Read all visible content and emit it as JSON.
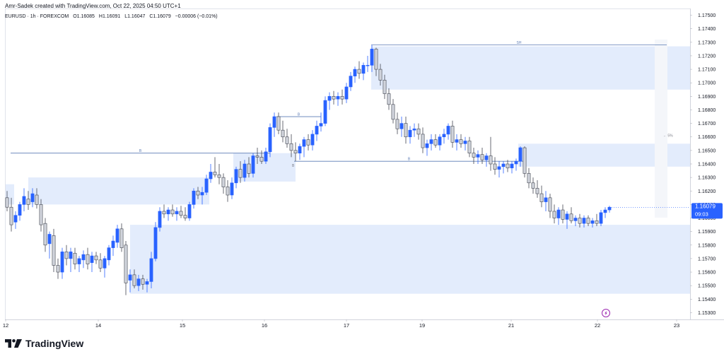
{
  "header": {
    "author_line": "Amr-Sadek created with TradingView.com, Oct 22, 2025 04:50 UTC+1",
    "symbol": "EURUSD · 1h · FOREXCOM",
    "open": "O1.16085",
    "high": "H1.16091",
    "low": "L1.16047",
    "close": "C1.16079",
    "change": "−0.00006 (−0.01%)"
  },
  "brand": {
    "name": "TradingView",
    "logo_icon": "tradingview-logo-icon"
  },
  "price_label": {
    "price": "1.16079",
    "countdown": "09:03",
    "color": "#2962ff"
  },
  "colors": {
    "up_body": "#2962ff",
    "down_body": "#d1d4dc",
    "down_border": "#434651",
    "zone_fill": "#e3ecfc",
    "level_line": "#5b7bb5",
    "lightning_icon": "#9c27b0"
  },
  "chart_data": {
    "type": "candlestick",
    "symbol": "EURUSD",
    "timeframe": "1h",
    "y_range": [
      1.1525,
      1.1755
    ],
    "y_ticks": [
      "1.17500",
      "1.17400",
      "1.17300",
      "1.17200",
      "1.17100",
      "1.17000",
      "1.16900",
      "1.16800",
      "1.16700",
      "1.16600",
      "1.16500",
      "1.16400",
      "1.16300",
      "1.16200",
      "1.16100",
      "1.16000",
      "1.15900",
      "1.15800",
      "1.15700",
      "1.15600",
      "1.15500",
      "1.15400",
      "1.15300"
    ],
    "x_ticks": [
      {
        "label": "12",
        "x": 0
      },
      {
        "label": "14",
        "x": 131
      },
      {
        "label": "15",
        "x": 250
      },
      {
        "label": "16",
        "x": 366
      },
      {
        "label": "17",
        "x": 482
      },
      {
        "label": "19",
        "x": 589
      },
      {
        "label": "21",
        "x": 715
      },
      {
        "label": "22",
        "x": 837
      },
      {
        "label": "23",
        "x": 949
      }
    ],
    "candles": [
      {
        "x": 2,
        "o": 1.1615,
        "h": 1.162,
        "l": 1.1605,
        "c": 1.1608
      },
      {
        "x": 8,
        "o": 1.1608,
        "h": 1.1615,
        "l": 1.159,
        "c": 1.1595
      },
      {
        "x": 14,
        "o": 1.1597,
        "h": 1.1605,
        "l": 1.1592,
        "c": 1.1602
      },
      {
        "x": 20,
        "o": 1.1602,
        "h": 1.1612,
        "l": 1.1598,
        "c": 1.161
      },
      {
        "x": 26,
        "o": 1.161,
        "h": 1.1622,
        "l": 1.1605,
        "c": 1.1616
      },
      {
        "x": 32,
        "o": 1.1614,
        "h": 1.162,
        "l": 1.1606,
        "c": 1.161
      },
      {
        "x": 38,
        "o": 1.1612,
        "h": 1.1622,
        "l": 1.1608,
        "c": 1.1618
      },
      {
        "x": 44,
        "o": 1.1617,
        "h": 1.1622,
        "l": 1.1607,
        "c": 1.161
      },
      {
        "x": 50,
        "o": 1.161,
        "h": 1.1614,
        "l": 1.159,
        "c": 1.1595
      },
      {
        "x": 56,
        "o": 1.1596,
        "h": 1.16,
        "l": 1.1575,
        "c": 1.158
      },
      {
        "x": 62,
        "o": 1.1581,
        "h": 1.159,
        "l": 1.157,
        "c": 1.1588
      },
      {
        "x": 68,
        "o": 1.1587,
        "h": 1.1592,
        "l": 1.156,
        "c": 1.1565
      },
      {
        "x": 74,
        "o": 1.1565,
        "h": 1.157,
        "l": 1.1555,
        "c": 1.156
      },
      {
        "x": 80,
        "o": 1.156,
        "h": 1.1578,
        "l": 1.1555,
        "c": 1.1575
      },
      {
        "x": 86,
        "o": 1.1575,
        "h": 1.158,
        "l": 1.1565,
        "c": 1.157
      },
      {
        "x": 92,
        "o": 1.157,
        "h": 1.1578,
        "l": 1.156,
        "c": 1.1575
      },
      {
        "x": 98,
        "o": 1.1574,
        "h": 1.1578,
        "l": 1.1562,
        "c": 1.1566
      },
      {
        "x": 104,
        "o": 1.1566,
        "h": 1.1572,
        "l": 1.156,
        "c": 1.157
      },
      {
        "x": 110,
        "o": 1.1569,
        "h": 1.1576,
        "l": 1.1563,
        "c": 1.1573
      },
      {
        "x": 116,
        "o": 1.1573,
        "h": 1.1578,
        "l": 1.1562,
        "c": 1.1566
      },
      {
        "x": 122,
        "o": 1.1567,
        "h": 1.1575,
        "l": 1.156,
        "c": 1.1572
      },
      {
        "x": 128,
        "o": 1.1572,
        "h": 1.1575,
        "l": 1.1566,
        "c": 1.1569
      },
      {
        "x": 134,
        "o": 1.1569,
        "h": 1.1574,
        "l": 1.156,
        "c": 1.1563
      },
      {
        "x": 140,
        "o": 1.1563,
        "h": 1.1572,
        "l": 1.1556,
        "c": 1.157
      },
      {
        "x": 146,
        "o": 1.1569,
        "h": 1.158,
        "l": 1.1565,
        "c": 1.1578
      },
      {
        "x": 152,
        "o": 1.1578,
        "h": 1.1587,
        "l": 1.1572,
        "c": 1.1583
      },
      {
        "x": 158,
        "o": 1.1582,
        "h": 1.1595,
        "l": 1.1578,
        "c": 1.1592
      },
      {
        "x": 164,
        "o": 1.1592,
        "h": 1.1596,
        "l": 1.1575,
        "c": 1.1578
      },
      {
        "x": 170,
        "o": 1.158,
        "h": 1.1583,
        "l": 1.1543,
        "c": 1.1552
      },
      {
        "x": 176,
        "o": 1.1554,
        "h": 1.1562,
        "l": 1.1545,
        "c": 1.1558
      },
      {
        "x": 182,
        "o": 1.1558,
        "h": 1.1562,
        "l": 1.1548,
        "c": 1.155
      },
      {
        "x": 188,
        "o": 1.155,
        "h": 1.1558,
        "l": 1.1546,
        "c": 1.1555
      },
      {
        "x": 194,
        "o": 1.1555,
        "h": 1.1558,
        "l": 1.1547,
        "c": 1.1551
      },
      {
        "x": 200,
        "o": 1.1551,
        "h": 1.1555,
        "l": 1.1545,
        "c": 1.1553
      },
      {
        "x": 206,
        "o": 1.1553,
        "h": 1.1575,
        "l": 1.1548,
        "c": 1.157
      },
      {
        "x": 212,
        "o": 1.157,
        "h": 1.1597,
        "l": 1.1568,
        "c": 1.1593
      },
      {
        "x": 218,
        "o": 1.1593,
        "h": 1.1608,
        "l": 1.159,
        "c": 1.1605
      },
      {
        "x": 224,
        "o": 1.1605,
        "h": 1.161,
        "l": 1.16,
        "c": 1.1603
      },
      {
        "x": 230,
        "o": 1.1603,
        "h": 1.1608,
        "l": 1.1598,
        "c": 1.1606
      },
      {
        "x": 236,
        "o": 1.1606,
        "h": 1.161,
        "l": 1.1601,
        "c": 1.1603
      },
      {
        "x": 242,
        "o": 1.1603,
        "h": 1.1608,
        "l": 1.1598,
        "c": 1.1605
      },
      {
        "x": 248,
        "o": 1.1605,
        "h": 1.1609,
        "l": 1.16,
        "c": 1.1602
      },
      {
        "x": 254,
        "o": 1.1602,
        "h": 1.1608,
        "l": 1.1598,
        "c": 1.16
      },
      {
        "x": 260,
        "o": 1.16,
        "h": 1.1612,
        "l": 1.1598,
        "c": 1.161
      },
      {
        "x": 266,
        "o": 1.161,
        "h": 1.1622,
        "l": 1.1607,
        "c": 1.162
      },
      {
        "x": 272,
        "o": 1.162,
        "h": 1.1623,
        "l": 1.1614,
        "c": 1.1617
      },
      {
        "x": 278,
        "o": 1.1617,
        "h": 1.1623,
        "l": 1.161,
        "c": 1.1619
      },
      {
        "x": 284,
        "o": 1.1619,
        "h": 1.1632,
        "l": 1.1617,
        "c": 1.1629
      },
      {
        "x": 290,
        "o": 1.1629,
        "h": 1.164,
        "l": 1.1626,
        "c": 1.1634
      },
      {
        "x": 296,
        "o": 1.1634,
        "h": 1.1645,
        "l": 1.163,
        "c": 1.1632
      },
      {
        "x": 302,
        "o": 1.1632,
        "h": 1.164,
        "l": 1.1625,
        "c": 1.163
      },
      {
        "x": 308,
        "o": 1.163,
        "h": 1.1633,
        "l": 1.1618,
        "c": 1.1623
      },
      {
        "x": 314,
        "o": 1.1623,
        "h": 1.1628,
        "l": 1.1612,
        "c": 1.1617
      },
      {
        "x": 320,
        "o": 1.1617,
        "h": 1.163,
        "l": 1.1614,
        "c": 1.1626
      },
      {
        "x": 326,
        "o": 1.1626,
        "h": 1.1638,
        "l": 1.1622,
        "c": 1.1636
      },
      {
        "x": 332,
        "o": 1.1636,
        "h": 1.1642,
        "l": 1.1626,
        "c": 1.163
      },
      {
        "x": 338,
        "o": 1.163,
        "h": 1.1643,
        "l": 1.1627,
        "c": 1.164
      },
      {
        "x": 344,
        "o": 1.164,
        "h": 1.1645,
        "l": 1.163,
        "c": 1.1633
      },
      {
        "x": 350,
        "o": 1.1633,
        "h": 1.1648,
        "l": 1.163,
        "c": 1.1646
      },
      {
        "x": 356,
        "o": 1.1646,
        "h": 1.1652,
        "l": 1.164,
        "c": 1.1645
      },
      {
        "x": 362,
        "o": 1.1645,
        "h": 1.165,
        "l": 1.164,
        "c": 1.1642
      },
      {
        "x": 368,
        "o": 1.1642,
        "h": 1.1652,
        "l": 1.164,
        "c": 1.1649
      },
      {
        "x": 374,
        "o": 1.1649,
        "h": 1.167,
        "l": 1.1645,
        "c": 1.1667
      },
      {
        "x": 380,
        "o": 1.1667,
        "h": 1.1678,
        "l": 1.166,
        "c": 1.1675
      },
      {
        "x": 386,
        "o": 1.1675,
        "h": 1.1678,
        "l": 1.1662,
        "c": 1.1665
      },
      {
        "x": 392,
        "o": 1.1665,
        "h": 1.1672,
        "l": 1.1656,
        "c": 1.166
      },
      {
        "x": 398,
        "o": 1.166,
        "h": 1.1666,
        "l": 1.1652,
        "c": 1.1655
      },
      {
        "x": 404,
        "o": 1.1655,
        "h": 1.1662,
        "l": 1.1645,
        "c": 1.165
      },
      {
        "x": 410,
        "o": 1.165,
        "h": 1.1656,
        "l": 1.1642,
        "c": 1.1648
      },
      {
        "x": 416,
        "o": 1.1648,
        "h": 1.1655,
        "l": 1.1643,
        "c": 1.1653
      },
      {
        "x": 422,
        "o": 1.1653,
        "h": 1.166,
        "l": 1.1645,
        "c": 1.1658
      },
      {
        "x": 428,
        "o": 1.1658,
        "h": 1.1662,
        "l": 1.165,
        "c": 1.1654
      },
      {
        "x": 434,
        "o": 1.1654,
        "h": 1.1665,
        "l": 1.165,
        "c": 1.1662
      },
      {
        "x": 440,
        "o": 1.1662,
        "h": 1.1672,
        "l": 1.1657,
        "c": 1.1668
      },
      {
        "x": 446,
        "o": 1.1668,
        "h": 1.1678,
        "l": 1.1664,
        "c": 1.167
      },
      {
        "x": 452,
        "o": 1.167,
        "h": 1.169,
        "l": 1.1668,
        "c": 1.1687
      },
      {
        "x": 458,
        "o": 1.1687,
        "h": 1.1693,
        "l": 1.168,
        "c": 1.169
      },
      {
        "x": 464,
        "o": 1.169,
        "h": 1.1694,
        "l": 1.1684,
        "c": 1.1688
      },
      {
        "x": 470,
        "o": 1.1688,
        "h": 1.1693,
        "l": 1.1683,
        "c": 1.169
      },
      {
        "x": 476,
        "o": 1.169,
        "h": 1.1695,
        "l": 1.1684,
        "c": 1.1688
      },
      {
        "x": 482,
        "o": 1.1688,
        "h": 1.17,
        "l": 1.1685,
        "c": 1.1697
      },
      {
        "x": 488,
        "o": 1.1697,
        "h": 1.1708,
        "l": 1.1694,
        "c": 1.1705
      },
      {
        "x": 494,
        "o": 1.1705,
        "h": 1.1712,
        "l": 1.17,
        "c": 1.171
      },
      {
        "x": 500,
        "o": 1.171,
        "h": 1.1716,
        "l": 1.1703,
        "c": 1.1707
      },
      {
        "x": 506,
        "o": 1.1707,
        "h": 1.1715,
        "l": 1.1702,
        "c": 1.1713
      },
      {
        "x": 512,
        "o": 1.1713,
        "h": 1.172,
        "l": 1.1708,
        "c": 1.1713
      },
      {
        "x": 518,
        "o": 1.1713,
        "h": 1.1728,
        "l": 1.1708,
        "c": 1.1725
      },
      {
        "x": 524,
        "o": 1.1725,
        "h": 1.1726,
        "l": 1.1705,
        "c": 1.171
      },
      {
        "x": 530,
        "o": 1.171,
        "h": 1.1714,
        "l": 1.1698,
        "c": 1.1702
      },
      {
        "x": 536,
        "o": 1.1702,
        "h": 1.1706,
        "l": 1.1688,
        "c": 1.1692
      },
      {
        "x": 542,
        "o": 1.1692,
        "h": 1.1696,
        "l": 1.168,
        "c": 1.1684
      },
      {
        "x": 548,
        "o": 1.1684,
        "h": 1.1688,
        "l": 1.167,
        "c": 1.1673
      },
      {
        "x": 554,
        "o": 1.1673,
        "h": 1.1678,
        "l": 1.1662,
        "c": 1.1666
      },
      {
        "x": 560,
        "o": 1.1666,
        "h": 1.1675,
        "l": 1.166,
        "c": 1.167
      },
      {
        "x": 566,
        "o": 1.167,
        "h": 1.1675,
        "l": 1.1655,
        "c": 1.166
      },
      {
        "x": 572,
        "o": 1.166,
        "h": 1.1668,
        "l": 1.1655,
        "c": 1.1665
      },
      {
        "x": 578,
        "o": 1.1665,
        "h": 1.167,
        "l": 1.166,
        "c": 1.1666
      },
      {
        "x": 584,
        "o": 1.1666,
        "h": 1.167,
        "l": 1.1658,
        "c": 1.1662
      },
      {
        "x": 590,
        "o": 1.1662,
        "h": 1.1667,
        "l": 1.1648,
        "c": 1.1652
      },
      {
        "x": 596,
        "o": 1.1652,
        "h": 1.1658,
        "l": 1.1646,
        "c": 1.1655
      },
      {
        "x": 602,
        "o": 1.1655,
        "h": 1.1662,
        "l": 1.165,
        "c": 1.1658
      },
      {
        "x": 608,
        "o": 1.1658,
        "h": 1.1662,
        "l": 1.1652,
        "c": 1.1654
      },
      {
        "x": 614,
        "o": 1.1654,
        "h": 1.1662,
        "l": 1.165,
        "c": 1.166
      },
      {
        "x": 620,
        "o": 1.166,
        "h": 1.1666,
        "l": 1.1655,
        "c": 1.1662
      },
      {
        "x": 626,
        "o": 1.1662,
        "h": 1.167,
        "l": 1.1658,
        "c": 1.1668
      },
      {
        "x": 632,
        "o": 1.1668,
        "h": 1.1672,
        "l": 1.1652,
        "c": 1.1656
      },
      {
        "x": 638,
        "o": 1.1656,
        "h": 1.1662,
        "l": 1.165,
        "c": 1.1658
      },
      {
        "x": 644,
        "o": 1.1658,
        "h": 1.1662,
        "l": 1.1652,
        "c": 1.1655
      },
      {
        "x": 650,
        "o": 1.1655,
        "h": 1.166,
        "l": 1.165,
        "c": 1.1657
      },
      {
        "x": 656,
        "o": 1.1657,
        "h": 1.166,
        "l": 1.1645,
        "c": 1.1648
      },
      {
        "x": 662,
        "o": 1.1648,
        "h": 1.1652,
        "l": 1.164,
        "c": 1.1645
      },
      {
        "x": 668,
        "o": 1.1645,
        "h": 1.165,
        "l": 1.164,
        "c": 1.1647
      },
      {
        "x": 674,
        "o": 1.1647,
        "h": 1.1652,
        "l": 1.164,
        "c": 1.1643
      },
      {
        "x": 680,
        "o": 1.1643,
        "h": 1.1648,
        "l": 1.1638,
        "c": 1.1646
      },
      {
        "x": 686,
        "o": 1.1646,
        "h": 1.166,
        "l": 1.1635,
        "c": 1.164
      },
      {
        "x": 692,
        "o": 1.164,
        "h": 1.1645,
        "l": 1.1632,
        "c": 1.1636
      },
      {
        "x": 698,
        "o": 1.1636,
        "h": 1.1642,
        "l": 1.163,
        "c": 1.1638
      },
      {
        "x": 704,
        "o": 1.1638,
        "h": 1.1642,
        "l": 1.1633,
        "c": 1.164
      },
      {
        "x": 710,
        "o": 1.164,
        "h": 1.1643,
        "l": 1.1634,
        "c": 1.1637
      },
      {
        "x": 716,
        "o": 1.1637,
        "h": 1.1642,
        "l": 1.1633,
        "c": 1.164
      },
      {
        "x": 722,
        "o": 1.164,
        "h": 1.1644,
        "l": 1.1635,
        "c": 1.1642
      },
      {
        "x": 728,
        "o": 1.1642,
        "h": 1.1653,
        "l": 1.1638,
        "c": 1.1652
      },
      {
        "x": 734,
        "o": 1.1652,
        "h": 1.1653,
        "l": 1.163,
        "c": 1.1633
      },
      {
        "x": 740,
        "o": 1.1633,
        "h": 1.1637,
        "l": 1.1622,
        "c": 1.1626
      },
      {
        "x": 746,
        "o": 1.1626,
        "h": 1.163,
        "l": 1.1618,
        "c": 1.1622
      },
      {
        "x": 752,
        "o": 1.1622,
        "h": 1.1628,
        "l": 1.1615,
        "c": 1.1618
      },
      {
        "x": 758,
        "o": 1.1618,
        "h": 1.1624,
        "l": 1.1608,
        "c": 1.1612
      },
      {
        "x": 764,
        "o": 1.1612,
        "h": 1.162,
        "l": 1.1605,
        "c": 1.1615
      },
      {
        "x": 770,
        "o": 1.1615,
        "h": 1.1618,
        "l": 1.16,
        "c": 1.1605
      },
      {
        "x": 776,
        "o": 1.1605,
        "h": 1.161,
        "l": 1.1596,
        "c": 1.16
      },
      {
        "x": 782,
        "o": 1.16,
        "h": 1.1608,
        "l": 1.1595,
        "c": 1.1606
      },
      {
        "x": 788,
        "o": 1.1606,
        "h": 1.161,
        "l": 1.1596,
        "c": 1.1599
      },
      {
        "x": 794,
        "o": 1.1599,
        "h": 1.1605,
        "l": 1.1592,
        "c": 1.1603
      },
      {
        "x": 800,
        "o": 1.1603,
        "h": 1.1608,
        "l": 1.1596,
        "c": 1.1598
      },
      {
        "x": 806,
        "o": 1.1598,
        "h": 1.1602,
        "l": 1.1594,
        "c": 1.16
      },
      {
        "x": 812,
        "o": 1.16,
        "h": 1.1603,
        "l": 1.1593,
        "c": 1.1596
      },
      {
        "x": 818,
        "o": 1.1596,
        "h": 1.1602,
        "l": 1.1593,
        "c": 1.16
      },
      {
        "x": 824,
        "o": 1.16,
        "h": 1.1602,
        "l": 1.1594,
        "c": 1.1596
      },
      {
        "x": 830,
        "o": 1.1596,
        "h": 1.16,
        "l": 1.1593,
        "c": 1.1598
      },
      {
        "x": 836,
        "o": 1.1598,
        "h": 1.1603,
        "l": 1.1594,
        "c": 1.1596
      },
      {
        "x": 842,
        "o": 1.1596,
        "h": 1.1606,
        "l": 1.1594,
        "c": 1.1604
      },
      {
        "x": 848,
        "o": 1.1604,
        "h": 1.1608,
        "l": 1.16,
        "c": 1.1606
      },
      {
        "x": 854,
        "o": 1.1606,
        "h": 1.1609,
        "l": 1.1604,
        "c": 1.1608
      }
    ],
    "zones": [
      {
        "x1": 32,
        "x2": 288,
        "y1": 1.163,
        "y2": 1.161
      },
      {
        "x1": 322,
        "x2": 410,
        "y1": 1.1648,
        "y2": 1.1627
      },
      {
        "x1": 517,
        "x2": 976,
        "y1": 1.1727,
        "y2": 1.1695
      },
      {
        "x1": 725,
        "x2": 976,
        "y1": 1.1655,
        "y2": 1.1638
      },
      {
        "x1": 176,
        "x2": 976,
        "y1": 1.1595,
        "y2": 1.1544
      },
      {
        "x1": 0,
        "x2": 12,
        "y1": 1.1625,
        "y2": 1.161
      }
    ],
    "levels": [
      {
        "x1": 7,
        "x2": 374,
        "y": 1.1648,
        "label": "B"
      },
      {
        "x1": 383,
        "x2": 446,
        "y": 1.1675,
        "label": "B"
      },
      {
        "x1": 408,
        "x2": 733,
        "y": 1.1642,
        "label": "B"
      },
      {
        "x1": 517,
        "x2": 935,
        "y": 1.1728,
        "label": "SH"
      }
    ],
    "annotations": [
      {
        "x": 405,
        "y": 1.1638,
        "text": "B"
      },
      {
        "x": 930,
        "y": 1.166,
        "text": "← 5%"
      }
    ],
    "last_price": 1.16079
  }
}
